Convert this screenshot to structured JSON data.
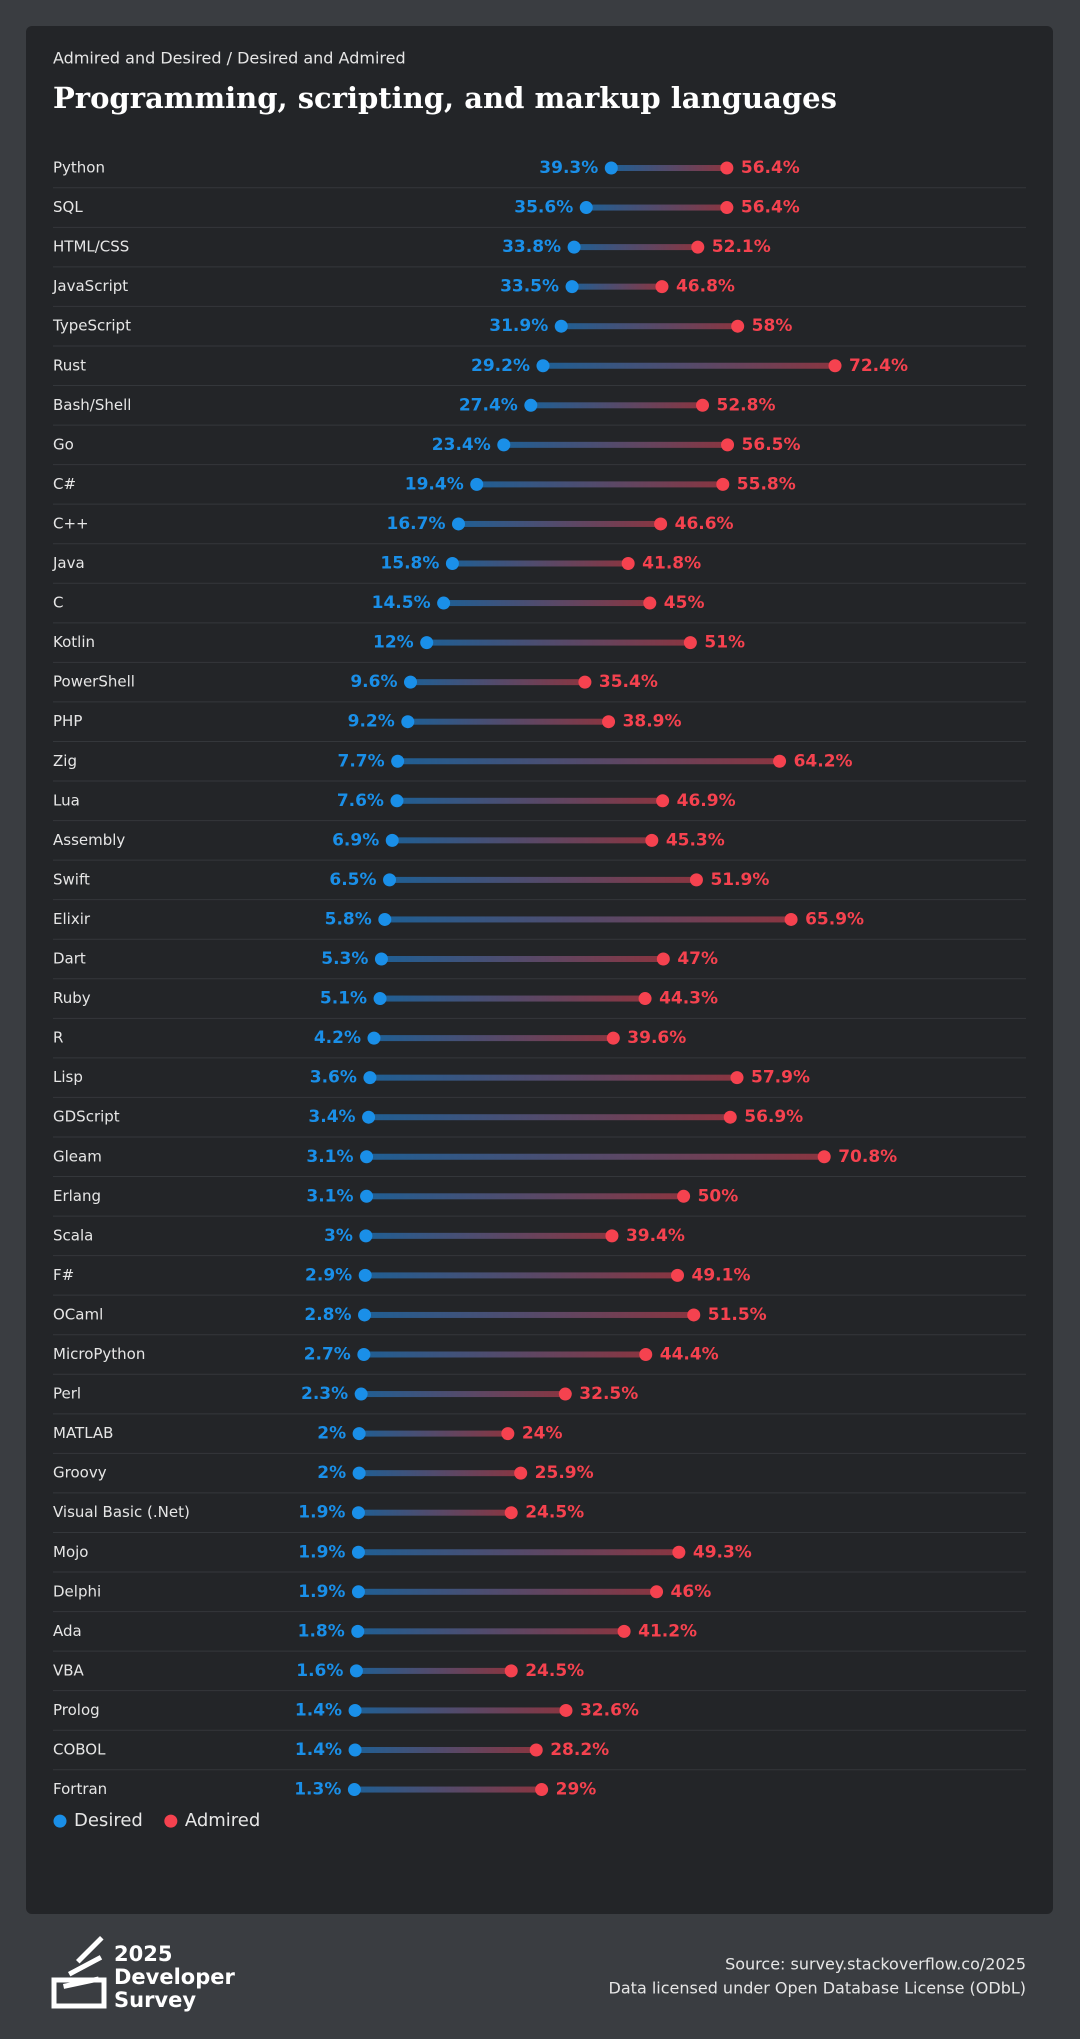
{
  "chart_data": {
    "type": "dumbbell",
    "subtitle": "Admired and Desired / Desired and Admired",
    "title": "Programming, scripting, and markup languages",
    "categories": [
      "Python",
      "SQL",
      "HTML/CSS",
      "JavaScript",
      "TypeScript",
      "Rust",
      "Bash/Shell",
      "Go",
      "C#",
      "C++",
      "Java",
      "C",
      "Kotlin",
      "PowerShell",
      "PHP",
      "Zig",
      "Lua",
      "Assembly",
      "Swift",
      "Elixir",
      "Dart",
      "Ruby",
      "R",
      "Lisp",
      "GDScript",
      "Gleam",
      "Erlang",
      "Scala",
      "F#",
      "OCaml",
      "MicroPython",
      "Perl",
      "MATLAB",
      "Groovy",
      "Visual Basic (.Net)",
      "Mojo",
      "Delphi",
      "Ada",
      "VBA",
      "Prolog",
      "COBOL",
      "Fortran"
    ],
    "series": [
      {
        "name": "Desired",
        "color": "#1a8fe8",
        "values": [
          39.3,
          35.6,
          33.8,
          33.5,
          31.9,
          29.2,
          27.4,
          23.4,
          19.4,
          16.7,
          15.8,
          14.5,
          12,
          9.6,
          9.2,
          7.7,
          7.6,
          6.9,
          6.5,
          5.8,
          5.3,
          5.1,
          4.2,
          3.6,
          3.4,
          3.1,
          3.1,
          3,
          2.9,
          2.8,
          2.7,
          2.3,
          2,
          2,
          1.9,
          1.9,
          1.9,
          1.8,
          1.6,
          1.4,
          1.4,
          1.3
        ],
        "value_labels": [
          "39.3%",
          "35.6%",
          "33.8%",
          "33.5%",
          "31.9%",
          "29.2%",
          "27.4%",
          "23.4%",
          "19.4%",
          "16.7%",
          "15.8%",
          "14.5%",
          "12%",
          "9.6%",
          "9.2%",
          "7.7%",
          "7.6%",
          "6.9%",
          "6.5%",
          "5.8%",
          "5.3%",
          "5.1%",
          "4.2%",
          "3.6%",
          "3.4%",
          "3.1%",
          "3.1%",
          "3%",
          "2.9%",
          "2.8%",
          "2.7%",
          "2.3%",
          "2%",
          "2%",
          "1.9%",
          "1.9%",
          "1.9%",
          "1.8%",
          "1.6%",
          "1.4%",
          "1.4%",
          "1.3%"
        ]
      },
      {
        "name": "Admired",
        "color": "#f5424f",
        "values": [
          56.4,
          56.4,
          52.1,
          46.8,
          58,
          72.4,
          52.8,
          56.5,
          55.8,
          46.6,
          41.8,
          45,
          51,
          35.4,
          38.9,
          64.2,
          46.9,
          45.3,
          51.9,
          65.9,
          47,
          44.3,
          39.6,
          57.9,
          56.9,
          70.8,
          50,
          39.4,
          49.1,
          51.5,
          44.4,
          32.5,
          24,
          25.9,
          24.5,
          49.3,
          46,
          41.2,
          24.5,
          32.6,
          28.2,
          29
        ],
        "value_labels": [
          "56.4%",
          "56.4%",
          "52.1%",
          "46.8%",
          "58%",
          "72.4%",
          "52.8%",
          "56.5%",
          "55.8%",
          "46.6%",
          "41.8%",
          "45%",
          "51%",
          "35.4%",
          "38.9%",
          "64.2%",
          "46.9%",
          "45.3%",
          "51.9%",
          "65.9%",
          "47%",
          "44.3%",
          "39.6%",
          "57.9%",
          "56.9%",
          "70.8%",
          "50%",
          "39.4%",
          "49.1%",
          "51.5%",
          "44.4%",
          "32.5%",
          "24%",
          "25.9%",
          "24.5%",
          "49.3%",
          "46%",
          "41.2%",
          "24.5%",
          "32.6%",
          "28.2%",
          "29%"
        ]
      }
    ]
  },
  "footer": {
    "brand": [
      "2025",
      "Developer",
      "Survey"
    ],
    "source": "Source: survey.stackoverflow.co/2025",
    "license": "Data licensed under Open Database License (ODbL)"
  }
}
